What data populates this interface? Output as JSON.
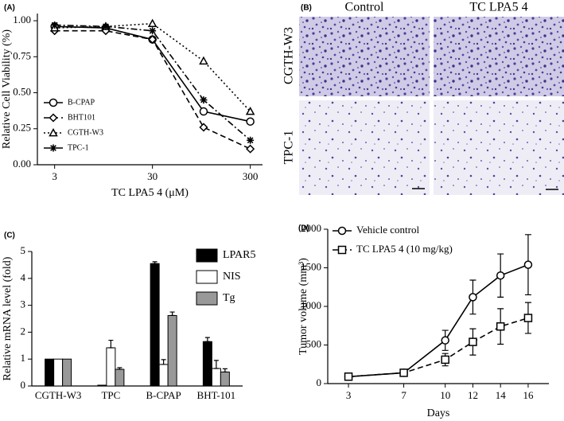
{
  "chart_data": [
    {
      "type": "line",
      "panel_label": "(A)",
      "ylabel": "Relative Cell Viability (%)",
      "xlabel": "TC LPA5 4 (μM)",
      "xscale": "log",
      "x": [
        3,
        10,
        30,
        100,
        300
      ],
      "xlim": [
        2,
        400
      ],
      "xticks": [
        3,
        30,
        300
      ],
      "ylim": [
        0,
        1.05
      ],
      "yticks": [
        {
          "value": 0,
          "label": "0.00"
        },
        {
          "value": 0.25,
          "label": "0.25"
        },
        {
          "value": 0.5,
          "label": "0.50"
        },
        {
          "value": 0.75,
          "label": "0.75"
        },
        {
          "value": 1,
          "label": "1.00"
        }
      ],
      "legend": "lower left",
      "series": [
        {
          "name": "B-CPAP",
          "color": "#000000",
          "marker": "circle",
          "dash": "solid",
          "values": [
            0.96,
            0.95,
            0.87,
            0.37,
            0.3
          ]
        },
        {
          "name": "BHT101",
          "color": "#000000",
          "marker": "diamond",
          "dash": "dashed",
          "values": [
            0.93,
            0.93,
            0.87,
            0.26,
            0.11
          ]
        },
        {
          "name": "CGTH-W3",
          "color": "#000000",
          "marker": "triangle",
          "dash": "dotted",
          "values": [
            0.95,
            0.96,
            0.98,
            0.72,
            0.37
          ]
        },
        {
          "name": "TPC-1",
          "color": "#000000",
          "marker": "star",
          "dash": "dashdot",
          "values": [
            0.97,
            0.96,
            0.93,
            0.45,
            0.17
          ]
        }
      ]
    },
    {
      "type": "bar",
      "panel_label": "(C)",
      "ylabel": "Relative mRNA level (fold)",
      "categories": [
        "CGTH-W3",
        "TPC",
        "B-CPAP",
        "BHT-101"
      ],
      "ylim": [
        0,
        5
      ],
      "yticks": [
        0,
        1,
        2,
        3,
        4,
        5
      ],
      "legend": "upper right",
      "series": [
        {
          "name": "LPAR5",
          "color": "#000000",
          "values": [
            1,
            0.03,
            4.55,
            1.65
          ],
          "errors": [
            0,
            0,
            0.07,
            0.15
          ]
        },
        {
          "name": "NIS",
          "color": "#ffffff",
          "values": [
            1,
            1.42,
            0.8,
            0.65
          ],
          "errors": [
            0,
            0.28,
            0.18,
            0.3
          ]
        },
        {
          "name": "Tg",
          "color": "#999999",
          "values": [
            1,
            0.62,
            2.62,
            0.52
          ],
          "errors": [
            0,
            0.06,
            0.13,
            0.12
          ]
        }
      ]
    },
    {
      "type": "line",
      "panel_label": "(D)",
      "ylabel": "Tumor volume (mm³)",
      "xlabel": "Days",
      "x": [
        3,
        7,
        10,
        12,
        14,
        16
      ],
      "xlim": [
        1.5,
        17.5
      ],
      "xticks": [
        3,
        7,
        10,
        12,
        14,
        16
      ],
      "ylim": [
        0,
        2000
      ],
      "yticks": [
        0,
        500,
        1000,
        1500,
        2000
      ],
      "legend": "upper left",
      "series": [
        {
          "name": "Vehicle control",
          "color": "#000000",
          "marker": "circle",
          "dash": "solid",
          "values": [
            90,
            140,
            560,
            1120,
            1400,
            1540
          ],
          "errors": [
            0,
            0,
            130,
            220,
            280,
            390
          ]
        },
        {
          "name": "TC LPA5 4 (10 mg/kg)",
          "color": "#000000",
          "marker": "square",
          "dash": "dashed",
          "values": [
            90,
            140,
            310,
            540,
            740,
            850
          ],
          "errors": [
            0,
            0,
            80,
            170,
            230,
            200
          ]
        }
      ]
    }
  ],
  "panel_b": {
    "label": "(B)",
    "columns": [
      "Control",
      "TC LPA5 4"
    ],
    "rows": [
      "CGTH-W3",
      "TPC-1"
    ]
  }
}
